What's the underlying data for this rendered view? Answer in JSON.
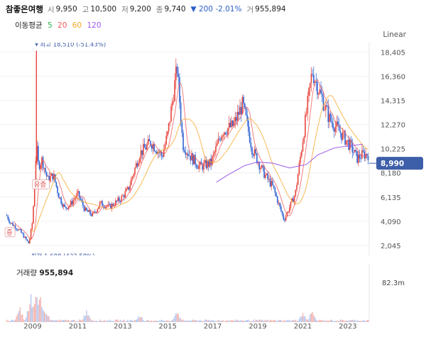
{
  "header": {
    "name": "참좋은여행",
    "open_label": "시",
    "open": "9,950",
    "high_label": "고",
    "high": "10,500",
    "low_label": "저",
    "low": "9,200",
    "close_label": "종",
    "close": "9,740",
    "change": "▼ 200 -2.01%",
    "volume_label": "거",
    "volume": "955,894"
  },
  "ma": {
    "label": "이동평균",
    "periods": [
      "5",
      "20",
      "60",
      "120"
    ],
    "colors": [
      "#2db34a",
      "#f05a5a",
      "#f5a623",
      "#9b59e8"
    ]
  },
  "scale_label": "Linear",
  "current_price_tag": "8,990",
  "colors": {
    "up": "#e8453c",
    "down": "#3063d4",
    "tag": "#3d5ea8"
  },
  "chart_data": {
    "type": "candlestick",
    "x_ticks": [
      "2009",
      "2011",
      "2013",
      "2015",
      "2017",
      "2019",
      "2021",
      "2023"
    ],
    "y_ticks": [
      2045,
      4090,
      6135,
      8180,
      10225,
      12270,
      14315,
      16360,
      18405
    ],
    "ylim": [
      1200,
      19200
    ],
    "max_annotation": "최고 18,510 (-51.43%)",
    "min_annotation": "최저 1,688 (432.58%)",
    "event_labels": [
      "유증",
      "증"
    ],
    "price_points": [
      [
        "2007-11",
        4600
      ],
      [
        "2008-01",
        4000
      ],
      [
        "2008-06",
        3300
      ],
      [
        "2008-11",
        2200
      ],
      [
        "2009-01",
        4200
      ],
      [
        "2009-03",
        10500
      ],
      [
        "2009-04",
        8800
      ],
      [
        "2009-06",
        9300
      ],
      [
        "2009-09",
        7600
      ],
      [
        "2009-12",
        8000
      ],
      [
        "2010-03",
        6200
      ],
      [
        "2010-06",
        5200
      ],
      [
        "2010-09",
        5500
      ],
      [
        "2011-01",
        6400
      ],
      [
        "2011-05",
        5000
      ],
      [
        "2011-09",
        4600
      ],
      [
        "2012-01",
        5600
      ],
      [
        "2012-06",
        5300
      ],
      [
        "2012-12",
        6000
      ],
      [
        "2013-04",
        6800
      ],
      [
        "2013-10",
        9800
      ],
      [
        "2014-04",
        10800
      ],
      [
        "2014-10",
        9600
      ],
      [
        "2015-01",
        11500
      ],
      [
        "2015-06",
        17100
      ],
      [
        "2015-09",
        10600
      ],
      [
        "2016-01",
        9600
      ],
      [
        "2016-06",
        8700
      ],
      [
        "2016-12",
        9000
      ],
      [
        "2017-06",
        11700
      ],
      [
        "2017-12",
        12200
      ],
      [
        "2018-05",
        14000
      ],
      [
        "2018-10",
        10200
      ],
      [
        "2019-04",
        8200
      ],
      [
        "2019-09",
        7000
      ],
      [
        "2020-03",
        4200
      ],
      [
        "2020-09",
        6400
      ],
      [
        "2021-01",
        11000
      ],
      [
        "2021-06",
        16800
      ],
      [
        "2021-10",
        15000
      ],
      [
        "2022-03",
        12800
      ],
      [
        "2022-09",
        11600
      ],
      [
        "2023-03",
        10300
      ],
      [
        "2023-06",
        9400
      ],
      [
        "2023-09",
        9740
      ]
    ],
    "ma120_points": [
      [
        "2017-03",
        7400
      ],
      [
        "2017-09",
        8000
      ],
      [
        "2018-06",
        8800
      ],
      [
        "2019-01",
        9100
      ],
      [
        "2019-09",
        9000
      ],
      [
        "2020-06",
        8600
      ],
      [
        "2021-03",
        8900
      ],
      [
        "2021-09",
        9700
      ],
      [
        "2022-06",
        10300
      ],
      [
        "2023-09",
        10600
      ]
    ],
    "volume_peaks": [
      [
        "2008-06",
        0.3
      ],
      [
        "2008-12",
        0.55
      ],
      [
        "2009-03",
        0.75
      ],
      [
        "2009-05",
        0.6
      ],
      [
        "2009-08",
        0.3
      ],
      [
        "2011-06",
        0.25
      ],
      [
        "2013-10",
        0.15
      ],
      [
        "2015-06",
        0.25
      ],
      [
        "2021-01",
        0.2
      ],
      [
        "2021-06",
        0.24
      ]
    ],
    "volume_max": "82.3m",
    "volume_title": "거래량",
    "volume_value": "955,894"
  }
}
